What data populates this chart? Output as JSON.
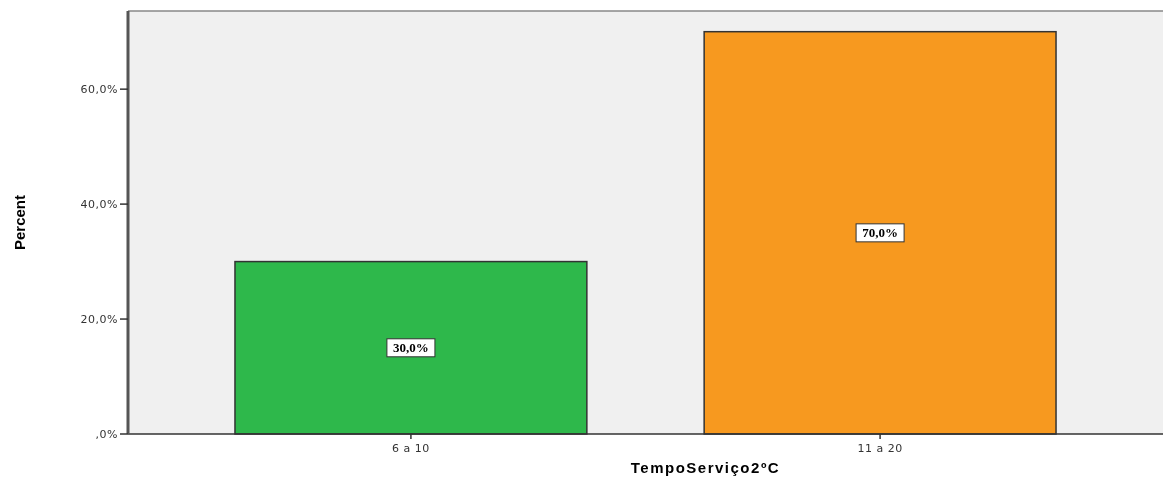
{
  "chart_data": {
    "type": "bar",
    "xlabel": "TempoServiço2ºC",
    "ylabel": "Percent",
    "categories": [
      "6 a 10",
      "11 a 20"
    ],
    "values": [
      30,
      70
    ],
    "colors": [
      "#2eb84b",
      "#f7991f"
    ],
    "value_labels": [
      "30,0%",
      "70,0%"
    ],
    "ylim": [
      0,
      73.6
    ],
    "yticks": [
      {
        "value": 0,
        "label": ",0%"
      },
      {
        "value": 20,
        "label": "20,0%"
      },
      {
        "value": 40,
        "label": "40,0%"
      },
      {
        "value": 60,
        "label": "60,0%"
      }
    ]
  }
}
